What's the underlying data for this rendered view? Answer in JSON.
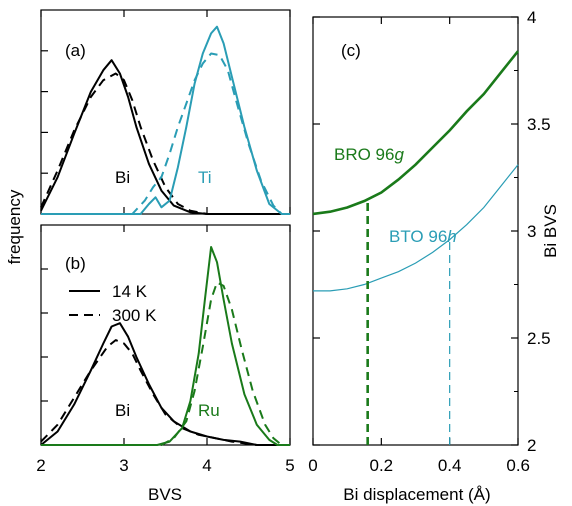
{
  "colors": {
    "black": "#000000",
    "ti": "#2a9db5",
    "green": "#1a7a1a",
    "axis": "#000000"
  },
  "left": {
    "xlabel": "BVS",
    "ylabel": "frequency",
    "xticks": [
      2,
      3,
      4,
      5
    ],
    "xlim": [
      2,
      5
    ],
    "panel_a": {
      "label": "(a)",
      "bi_label": "Bi",
      "ti_label": "Ti"
    },
    "panel_b": {
      "label": "(b)",
      "bi_label": "Bi",
      "ru_label": "Ru"
    },
    "legend": [
      {
        "label": "14 K",
        "style": "solid"
      },
      {
        "label": "300 K",
        "style": "dashed"
      }
    ]
  },
  "right": {
    "label": "(c)",
    "xlabel": "Bi displacement (Å)",
    "ylabel": "Bi BVS",
    "xticks": [
      "0",
      "0.2",
      "0.4",
      "0.6"
    ],
    "yticks": [
      "2",
      "2.5",
      "3",
      "3.5",
      "4"
    ],
    "bro_label_main": "BRO 96",
    "bro_label_italic": "g",
    "bto_label_main": "BTO 96",
    "bto_label_italic": "h"
  },
  "chart_data": [
    {
      "type": "line",
      "panel": "a",
      "xlim": [
        2,
        5
      ],
      "xlabel": "BVS",
      "ylabel": "frequency",
      "series": [
        {
          "name": "Bi 14 K",
          "style": "solid",
          "color": "#000000",
          "x": [
            2.0,
            2.2,
            2.4,
            2.6,
            2.75,
            2.85,
            2.95,
            3.05,
            3.15,
            3.3,
            3.45,
            3.6,
            3.8,
            4.0,
            4.5,
            5.0
          ],
          "y": [
            0.02,
            0.22,
            0.48,
            0.73,
            0.86,
            0.92,
            0.84,
            0.7,
            0.52,
            0.3,
            0.14,
            0.05,
            0.01,
            0.0,
            0.0,
            0.0
          ]
        },
        {
          "name": "Bi 300 K",
          "style": "dashed",
          "color": "#000000",
          "x": [
            2.0,
            2.2,
            2.4,
            2.6,
            2.75,
            2.9,
            3.0,
            3.1,
            3.2,
            3.35,
            3.5,
            3.65,
            3.8,
            4.0,
            4.5,
            5.0
          ],
          "y": [
            0.04,
            0.26,
            0.5,
            0.7,
            0.8,
            0.84,
            0.8,
            0.68,
            0.52,
            0.32,
            0.16,
            0.06,
            0.02,
            0.0,
            0.0,
            0.0
          ]
        },
        {
          "name": "Ti 14 K",
          "style": "solid",
          "color": "#2a9db5",
          "x": [
            2.0,
            3.2,
            3.3,
            3.38,
            3.45,
            3.55,
            3.65,
            3.75,
            3.85,
            3.95,
            4.05,
            4.12,
            4.2,
            4.3,
            4.45,
            4.6,
            4.75,
            4.9,
            5.0
          ],
          "y": [
            0.0,
            0.0,
            0.06,
            0.1,
            0.04,
            0.08,
            0.28,
            0.52,
            0.78,
            0.96,
            1.08,
            1.12,
            1.02,
            0.82,
            0.52,
            0.26,
            0.06,
            0.0,
            0.0
          ]
        },
        {
          "name": "Ti 300 K",
          "style": "dashed",
          "color": "#2a9db5",
          "x": [
            2.0,
            3.1,
            3.25,
            3.35,
            3.45,
            3.55,
            3.65,
            3.75,
            3.85,
            3.95,
            4.05,
            4.15,
            4.25,
            4.35,
            4.5,
            4.65,
            4.8,
            4.9,
            5.0
          ],
          "y": [
            0.0,
            0.0,
            0.08,
            0.16,
            0.22,
            0.36,
            0.52,
            0.66,
            0.8,
            0.9,
            0.96,
            0.95,
            0.86,
            0.68,
            0.42,
            0.2,
            0.05,
            0.0,
            0.0
          ]
        }
      ]
    },
    {
      "type": "line",
      "panel": "b",
      "xlim": [
        2,
        5
      ],
      "xlabel": "BVS",
      "ylabel": "frequency",
      "series": [
        {
          "name": "Bi 14 K",
          "style": "solid",
          "color": "#000000",
          "x": [
            2.0,
            2.2,
            2.4,
            2.6,
            2.75,
            2.85,
            2.95,
            3.05,
            3.15,
            3.3,
            3.45,
            3.6,
            3.8,
            4.0,
            4.2,
            4.4,
            4.6,
            5.0
          ],
          "y": [
            0.0,
            0.08,
            0.24,
            0.44,
            0.6,
            0.7,
            0.72,
            0.64,
            0.52,
            0.36,
            0.22,
            0.14,
            0.08,
            0.05,
            0.03,
            0.02,
            0.0,
            0.0
          ]
        },
        {
          "name": "Bi 300 K",
          "style": "dashed",
          "color": "#000000",
          "x": [
            2.0,
            2.2,
            2.4,
            2.6,
            2.8,
            2.9,
            3.0,
            3.1,
            3.2,
            3.35,
            3.5,
            3.7,
            3.9,
            4.1,
            4.3,
            4.6,
            5.0
          ],
          "y": [
            0.02,
            0.12,
            0.28,
            0.44,
            0.58,
            0.62,
            0.6,
            0.54,
            0.44,
            0.3,
            0.18,
            0.1,
            0.06,
            0.04,
            0.02,
            0.0,
            0.0
          ]
        },
        {
          "name": "Ru 14 K",
          "style": "solid",
          "color": "#1a7a1a",
          "x": [
            2.0,
            3.4,
            3.55,
            3.7,
            3.8,
            3.9,
            3.98,
            4.05,
            4.12,
            4.2,
            4.3,
            4.45,
            4.6,
            4.75,
            4.85,
            5.0
          ],
          "y": [
            0.0,
            0.0,
            0.02,
            0.1,
            0.26,
            0.54,
            0.88,
            1.17,
            1.08,
            0.86,
            0.6,
            0.3,
            0.12,
            0.03,
            0.0,
            0.0
          ]
        },
        {
          "name": "Ru 300 K",
          "style": "dashed",
          "color": "#1a7a1a",
          "x": [
            2.0,
            3.45,
            3.6,
            3.75,
            3.85,
            3.95,
            4.05,
            4.12,
            4.2,
            4.3,
            4.42,
            4.55,
            4.7,
            4.8,
            4.9,
            5.0
          ],
          "y": [
            0.0,
            0.0,
            0.04,
            0.14,
            0.32,
            0.58,
            0.86,
            0.96,
            0.94,
            0.8,
            0.56,
            0.32,
            0.12,
            0.04,
            0.0,
            0.0
          ]
        }
      ]
    },
    {
      "type": "line",
      "panel": "c",
      "xlim": [
        0,
        0.6
      ],
      "ylim": [
        2,
        4
      ],
      "xlabel": "Bi displacement (Å)",
      "ylabel": "Bi BVS",
      "series": [
        {
          "name": "BRO 96g",
          "style": "solid",
          "color": "#1a7a1a",
          "width": 2.6,
          "x": [
            0.0,
            0.05,
            0.1,
            0.15,
            0.2,
            0.25,
            0.3,
            0.35,
            0.4,
            0.45,
            0.5,
            0.55,
            0.6
          ],
          "y": [
            3.08,
            3.09,
            3.11,
            3.14,
            3.18,
            3.24,
            3.31,
            3.39,
            3.47,
            3.56,
            3.64,
            3.74,
            3.84
          ]
        },
        {
          "name": "BTO 96h",
          "style": "solid",
          "color": "#2a9db5",
          "width": 1.2,
          "x": [
            0.0,
            0.05,
            0.1,
            0.15,
            0.2,
            0.25,
            0.3,
            0.35,
            0.4,
            0.45,
            0.5,
            0.55,
            0.6
          ],
          "y": [
            2.72,
            2.72,
            2.73,
            2.75,
            2.78,
            2.81,
            2.85,
            2.9,
            2.96,
            3.03,
            3.11,
            3.21,
            3.31
          ]
        }
      ],
      "markers": [
        {
          "x": 0.16,
          "y_from": 2,
          "y_to": 3.15,
          "color": "#1a7a1a",
          "style": "dashed",
          "width": 2.6
        },
        {
          "x": 0.4,
          "y_from": 2,
          "y_to": 2.96,
          "color": "#2a9db5",
          "style": "dashed",
          "width": 1.2
        }
      ]
    }
  ]
}
